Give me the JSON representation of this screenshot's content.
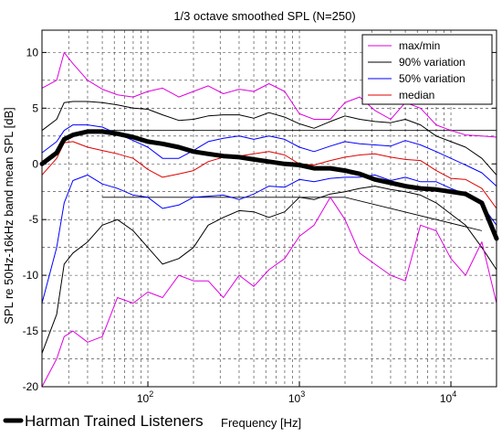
{
  "chart_data": {
    "type": "line",
    "title": "1/3 octave smoothed SPL (N=250)",
    "xlabel": "Frequency [Hz]",
    "ylabel": "SPL re 50Hz-16kHz band mean SPL [dB]",
    "xscale": "log",
    "xlim": [
      20,
      20000
    ],
    "ylim": [
      -20,
      12
    ],
    "yticks": [
      10,
      5,
      0,
      -5,
      -10,
      -15,
      -20
    ],
    "xticks": [
      {
        "value": 100,
        "base": "10",
        "exp": "2"
      },
      {
        "value": 1000,
        "base": "10",
        "exp": "3"
      },
      {
        "value": 10000,
        "base": "10",
        "exp": "4"
      }
    ],
    "grid": "dashed, major and minor",
    "legend_position": "top-right",
    "legend": [
      {
        "label": "max/min",
        "color": "#e000e0"
      },
      {
        "label": "90% variation",
        "color": "#000000"
      },
      {
        "label": "50% variation",
        "color": "#0000ff"
      },
      {
        "label": "median",
        "color": "#e00000"
      }
    ],
    "x": [
      20,
      25,
      28,
      32,
      40,
      50,
      63,
      80,
      100,
      125,
      160,
      200,
      250,
      315,
      400,
      500,
      630,
      800,
      1000,
      1250,
      1600,
      2000,
      2500,
      3150,
      4000,
      5000,
      6300,
      8000,
      10000,
      12500,
      16000,
      20000
    ],
    "series": [
      {
        "name": "max",
        "color": "#e000e0",
        "values": [
          6.8,
          7.5,
          10.0,
          9.0,
          7.5,
          6.7,
          6.2,
          6.0,
          6.5,
          6.8,
          6.0,
          6.5,
          7.0,
          6.3,
          6.7,
          6.5,
          7.2,
          6.5,
          4.5,
          4.0,
          4.0,
          5.5,
          6.0,
          4.8,
          4.0,
          5.5,
          5.0,
          3.5,
          3.0,
          2.6,
          2.5,
          2.4
        ]
      },
      {
        "name": "90% high",
        "color": "#000000",
        "values": [
          3.0,
          4.0,
          5.5,
          5.6,
          5.6,
          5.5,
          5.3,
          5.0,
          4.9,
          4.4,
          3.9,
          4.0,
          4.3,
          4.4,
          4.4,
          4.1,
          4.6,
          4.2,
          3.6,
          3.2,
          3.8,
          4.3,
          4.0,
          3.8,
          3.7,
          4.0,
          3.5,
          2.5,
          2.0,
          1.5,
          0.5,
          -1.0
        ]
      },
      {
        "name": "50% high",
        "color": "#0000ff",
        "values": [
          1.0,
          2.0,
          3.0,
          3.5,
          3.5,
          3.3,
          2.7,
          2.1,
          1.5,
          0.5,
          0.5,
          1.2,
          2.0,
          2.3,
          2.5,
          2.2,
          2.5,
          2.2,
          1.5,
          1.1,
          1.6,
          2.0,
          1.8,
          1.7,
          1.6,
          2.1,
          1.7,
          1.1,
          0.5,
          -0.1,
          -0.8,
          -2.0
        ]
      },
      {
        "name": "median",
        "color": "#e00000",
        "values": [
          -1.0,
          0.5,
          1.9,
          2.0,
          1.5,
          1.2,
          0.9,
          0.5,
          -0.5,
          -1.2,
          -0.9,
          -0.6,
          0.2,
          0.6,
          0.7,
          0.9,
          1.1,
          0.8,
          0.0,
          -0.1,
          0.3,
          0.6,
          0.8,
          0.9,
          0.6,
          0.4,
          0.3,
          -0.6,
          -1.3,
          -1.4,
          -2.2,
          -4.0
        ]
      },
      {
        "name": "50% low",
        "color": "#0000ff",
        "values": [
          -12.5,
          -7.5,
          -3.5,
          -1.5,
          -1.0,
          -1.8,
          -2.2,
          -2.8,
          -3.0,
          -4.0,
          -3.7,
          -3.0,
          -2.9,
          -2.8,
          -3.2,
          -2.7,
          -2.0,
          -2.1,
          -1.4,
          -1.6,
          -1.3,
          -1.2,
          -1.2,
          -1.0,
          -1.5,
          -1.2,
          -1.6,
          -1.6,
          -2.2,
          -2.7,
          -3.7,
          -5.5
        ]
      },
      {
        "name": "90% low",
        "color": "#000000",
        "values": [
          -17.0,
          -13.5,
          -9.0,
          -8.0,
          -7.0,
          -5.5,
          -5.0,
          -6.0,
          -7.5,
          -9.0,
          -8.5,
          -7.5,
          -5.5,
          -4.8,
          -4.2,
          -4.3,
          -4.8,
          -4.3,
          -3.0,
          -3.2,
          -2.7,
          -2.5,
          -2.2,
          -2.0,
          -2.3,
          -2.5,
          -2.8,
          -3.5,
          -4.5,
          -5.5,
          -7.5,
          -9.5
        ]
      },
      {
        "name": "min",
        "color": "#e000e0",
        "values": [
          -20.0,
          -17.5,
          -15.5,
          -15.0,
          -16.0,
          -15.5,
          -12.0,
          -12.5,
          -11.5,
          -12.0,
          -10.0,
          -10.5,
          -10.5,
          -12.0,
          -10.0,
          -11.0,
          -9.5,
          -8.5,
          -6.5,
          -5.5,
          -3.0,
          -5.0,
          -8.0,
          -9.0,
          -10.0,
          -10.5,
          -5.5,
          -6.0,
          -8.5,
          -10.0,
          -7.0,
          -12.5
        ]
      },
      {
        "name": "Harman Trained Listeners",
        "color": "#000000",
        "values": [
          0.0,
          1.0,
          2.2,
          2.6,
          2.9,
          2.9,
          2.7,
          2.4,
          2.0,
          1.8,
          1.5,
          1.1,
          0.9,
          0.7,
          0.6,
          0.4,
          0.2,
          0.0,
          -0.1,
          -0.4,
          -0.4,
          -0.6,
          -0.9,
          -1.4,
          -1.7,
          -2.0,
          -2.2,
          -2.3,
          -2.5,
          -2.7,
          -3.5,
          -6.7
        ]
      }
    ],
    "reference_lines": [
      {
        "x": [
          50,
          20000
        ],
        "y": [
          3.0,
          3.0
        ]
      },
      {
        "x": [
          50,
          2000
        ],
        "y": [
          -3.0,
          -3.0
        ]
      },
      {
        "x": [
          2000,
          16000
        ],
        "y": [
          -3.0,
          -6.0
        ]
      }
    ],
    "annotation": "Harman Trained Listeners"
  }
}
